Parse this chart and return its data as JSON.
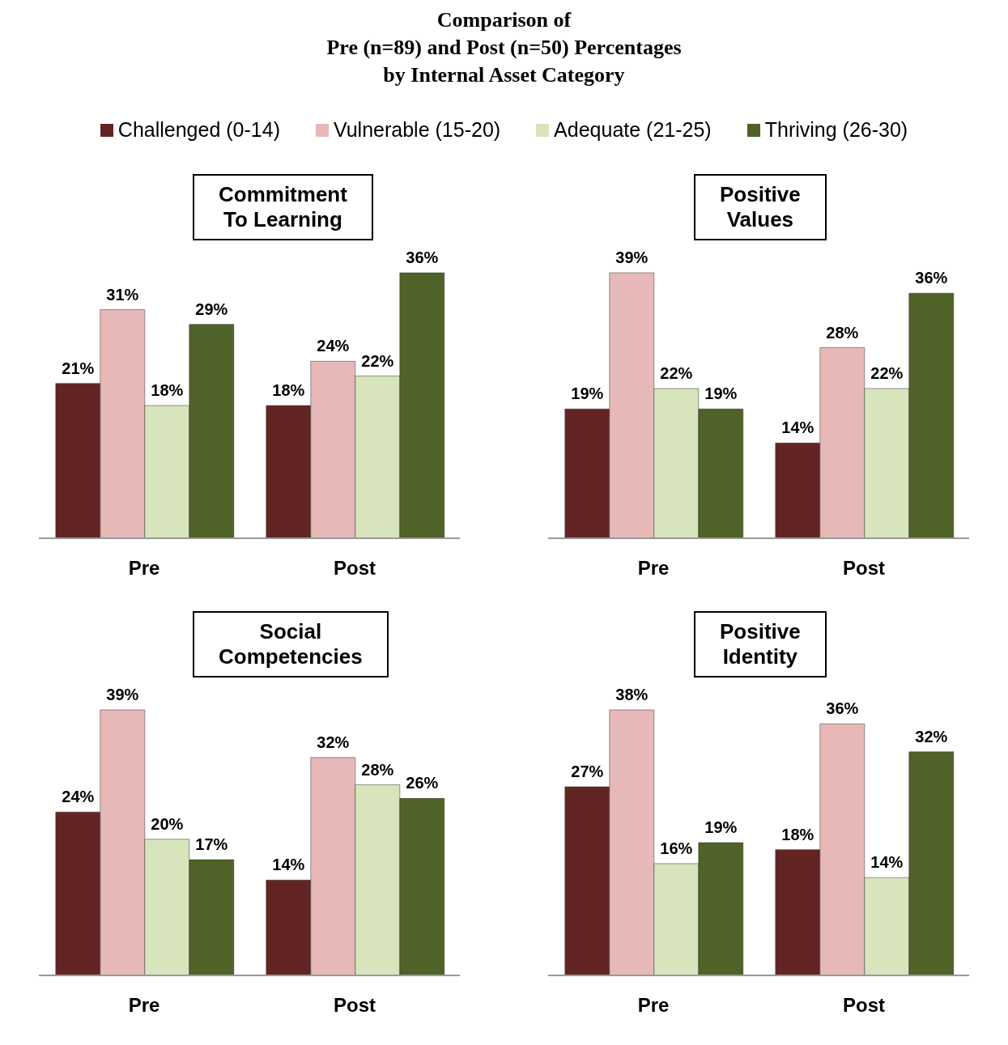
{
  "chart_data": [
    {
      "type": "bar",
      "annotations": [
        "Comparison of\nPre (n=89) and Post (n=50) Percentages\nby Internal Asset Category"
      ],
      "title": "Commitment\nTo Learning",
      "categories": [
        "Pre",
        "Post"
      ],
      "legend": "top",
      "series": [
        {
          "name": "Challenged (0-14)",
          "color": "#632523",
          "values": [
            21,
            18
          ],
          "value_labels": [
            "21%",
            "18%"
          ]
        },
        {
          "name": "Vulnerable (15-20)",
          "color": "#e6b9b8",
          "values": [
            31,
            24
          ],
          "value_labels": [
            "31%",
            "24%"
          ]
        },
        {
          "name": "Adequate (21-25)",
          "color": "#d7e4bc",
          "values": [
            18,
            22
          ],
          "value_labels": [
            "18%",
            "22%"
          ]
        },
        {
          "name": "Thriving (26-30)",
          "color": "#4f6228",
          "values": [
            29,
            36
          ],
          "value_labels": [
            "29%",
            "36%"
          ]
        }
      ]
    },
    {
      "type": "bar",
      "title": "Positive\nValues",
      "categories": [
        "Pre",
        "Post"
      ],
      "series": [
        {
          "color": "#632523",
          "values": [
            19,
            14
          ],
          "value_labels": [
            "19%",
            "14%"
          ]
        },
        {
          "color": "#e6b9b8",
          "values": [
            39,
            28
          ],
          "value_labels": [
            "39%",
            "28%"
          ]
        },
        {
          "color": "#d7e4bc",
          "values": [
            22,
            22
          ],
          "value_labels": [
            "22%",
            "22%"
          ]
        },
        {
          "color": "#4f6228",
          "values": [
            19,
            36
          ],
          "value_labels": [
            "19%",
            "36%"
          ]
        }
      ]
    },
    {
      "type": "bar",
      "title": "Social\nCompetencies",
      "categories": [
        "Pre",
        "Post"
      ],
      "series": [
        {
          "color": "#632523",
          "values": [
            24,
            14
          ],
          "value_labels": [
            "24%",
            "14%"
          ]
        },
        {
          "color": "#e6b9b8",
          "values": [
            39,
            32
          ],
          "value_labels": [
            "39%",
            "32%"
          ]
        },
        {
          "color": "#d7e4bc",
          "values": [
            20,
            28
          ],
          "value_labels": [
            "20%",
            "28%"
          ]
        },
        {
          "color": "#4f6228",
          "values": [
            17,
            26
          ],
          "value_labels": [
            "17%",
            "26%"
          ]
        }
      ]
    },
    {
      "type": "bar",
      "title": "Positive\nIdentity",
      "categories": [
        "Pre",
        "Post"
      ],
      "series": [
        {
          "color": "#632523",
          "values": [
            27,
            18
          ],
          "value_labels": [
            "27%",
            "18%"
          ]
        },
        {
          "color": "#e6b9b8",
          "values": [
            38,
            36
          ],
          "value_labels": [
            "38%",
            "36%"
          ]
        },
        {
          "color": "#d7e4bc",
          "values": [
            16,
            14
          ],
          "value_labels": [
            "16%",
            "14%"
          ]
        },
        {
          "color": "#4f6228",
          "values": [
            19,
            32
          ],
          "value_labels": [
            "19%",
            "32%"
          ]
        }
      ]
    }
  ]
}
